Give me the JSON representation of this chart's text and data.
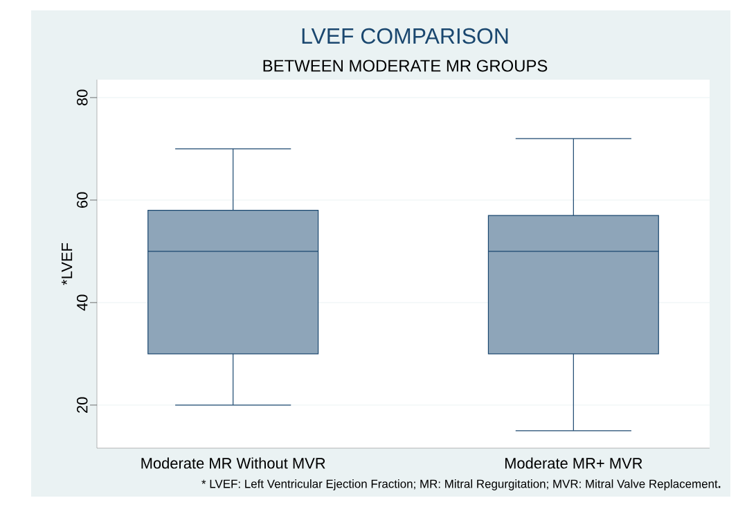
{
  "chart_data": {
    "type": "box",
    "title": "LVEF COMPARISON",
    "subtitle": "BETWEEN MODERATE MR GROUPS",
    "ylabel": "*LVEF",
    "categories": [
      "Moderate MR Without MVR",
      "Moderate MR+ MVR"
    ],
    "boxes": [
      {
        "low": 20,
        "q1": 30,
        "median": 50,
        "q3": 58,
        "high": 70
      },
      {
        "low": 15,
        "q1": 30,
        "median": 50,
        "q3": 57,
        "high": 72
      }
    ],
    "color": "#8ea5b9",
    "ylim": [
      11.6,
      83.5
    ],
    "yticks": [
      20,
      40,
      60,
      80
    ],
    "grid": "y",
    "annotations": [
      "* LVEF: Left Ventricular Ejection Fraction; MR: Mitral Regurgitation; MVR: Mitral Valve Replacement**.**"
    ]
  }
}
